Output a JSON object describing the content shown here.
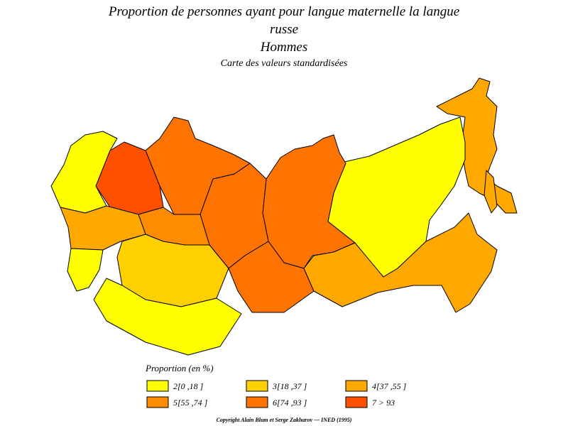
{
  "header": {
    "title_lines": [
      "Proportion de personnes ayant pour langue maternelle la langue",
      "russe"
    ],
    "subtitle": "Hommes",
    "caption": "Carte des valeurs standardisées"
  },
  "legend": {
    "title": "Proportion (en %)",
    "items": [
      {
        "label": "2[0 ,18 ]",
        "color": "#ffff00"
      },
      {
        "label": "3[18 ,37 ]",
        "color": "#ffd000"
      },
      {
        "label": "4[37 ,55 ]",
        "color": "#ffa800"
      },
      {
        "label": "5[55 ,74 ]",
        "color": "#ff8c00"
      },
      {
        "label": "6[74 ,93 ]",
        "color": "#ff7400"
      },
      {
        "label": "7 > 93",
        "color": "#ff5000"
      }
    ]
  },
  "footer": {
    "copyright": "Copyright Alain Blum et Serge Zakharov — INED (1995)"
  }
}
